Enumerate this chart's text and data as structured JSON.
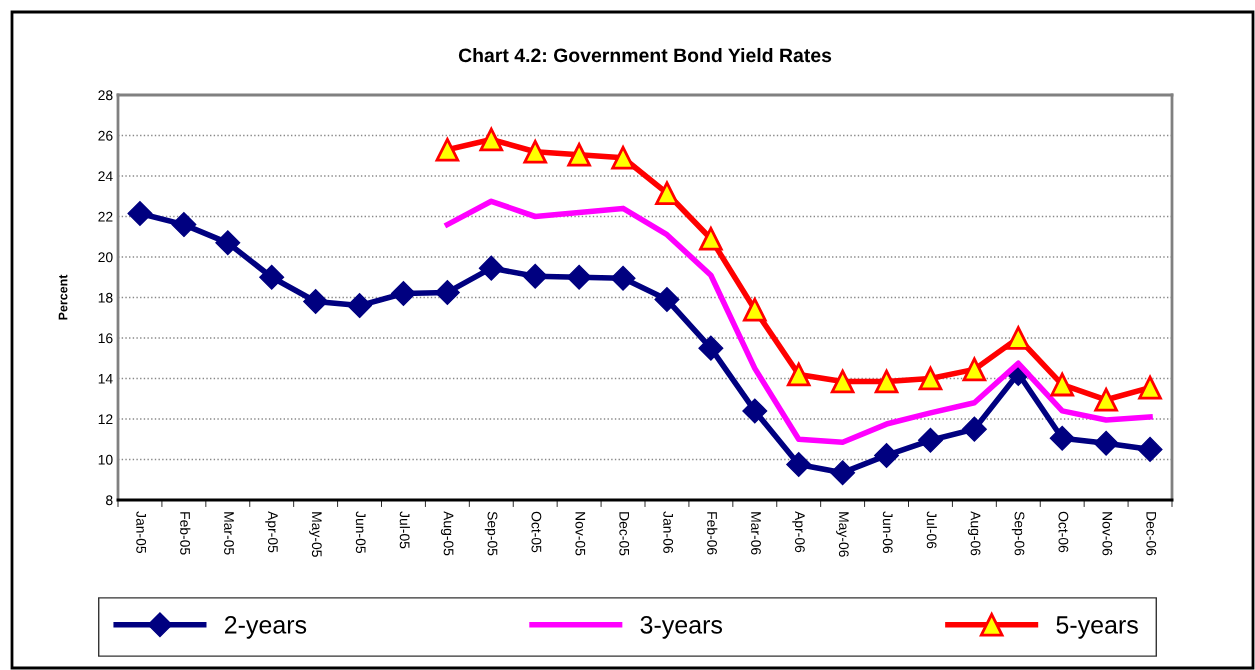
{
  "chart_data": {
    "type": "line",
    "title": "Chart 4.2: Government Bond Yield Rates",
    "ylabel": "Percent",
    "categories": [
      "Jan-05",
      "Feb-05",
      "Mar-05",
      "Apr-05",
      "May-05",
      "Jun-05",
      "Jul-05",
      "Aug-05",
      "Sep-05",
      "Oct-05",
      "Nov-05",
      "Dec-05",
      "Jan-06",
      "Feb-06",
      "Mar-06",
      "Apr-06",
      "May-06",
      "Jun-06",
      "Jul-06",
      "Aug-06",
      "Sep-06",
      "Oct-06",
      "Nov-06",
      "Dec-06"
    ],
    "series": [
      {
        "name": "2-years",
        "color": "#000080",
        "marker": "diamond",
        "values": [
          22.15,
          21.6,
          20.7,
          19.0,
          17.8,
          17.6,
          18.2,
          18.25,
          19.45,
          19.05,
          19.0,
          18.95,
          17.9,
          15.5,
          12.4,
          9.75,
          9.35,
          10.2,
          10.95,
          11.5,
          14.25,
          11.05,
          10.8,
          10.5
        ]
      },
      {
        "name": "3-years",
        "color": "#ff00ff",
        "marker": "none",
        "values": [
          null,
          null,
          null,
          null,
          null,
          null,
          null,
          21.6,
          22.75,
          22.0,
          22.2,
          22.4,
          21.1,
          19.1,
          14.5,
          11.0,
          10.85,
          11.75,
          12.3,
          12.8,
          14.75,
          12.4,
          11.95,
          12.1
        ]
      },
      {
        "name": "5-years",
        "color": "#ff0000",
        "marker": "triangle",
        "values": [
          null,
          null,
          null,
          null,
          null,
          null,
          null,
          25.3,
          25.8,
          25.2,
          25.05,
          24.9,
          23.15,
          20.9,
          17.4,
          14.2,
          13.85,
          13.85,
          14.0,
          14.45,
          16.0,
          13.7,
          12.95,
          13.55
        ]
      }
    ],
    "ylim": [
      8,
      28
    ],
    "yticks": [
      8,
      10,
      12,
      14,
      16,
      18,
      20,
      22,
      24,
      26,
      28
    ],
    "grid": "y",
    "legend": "bottom",
    "line_style": "solid"
  }
}
